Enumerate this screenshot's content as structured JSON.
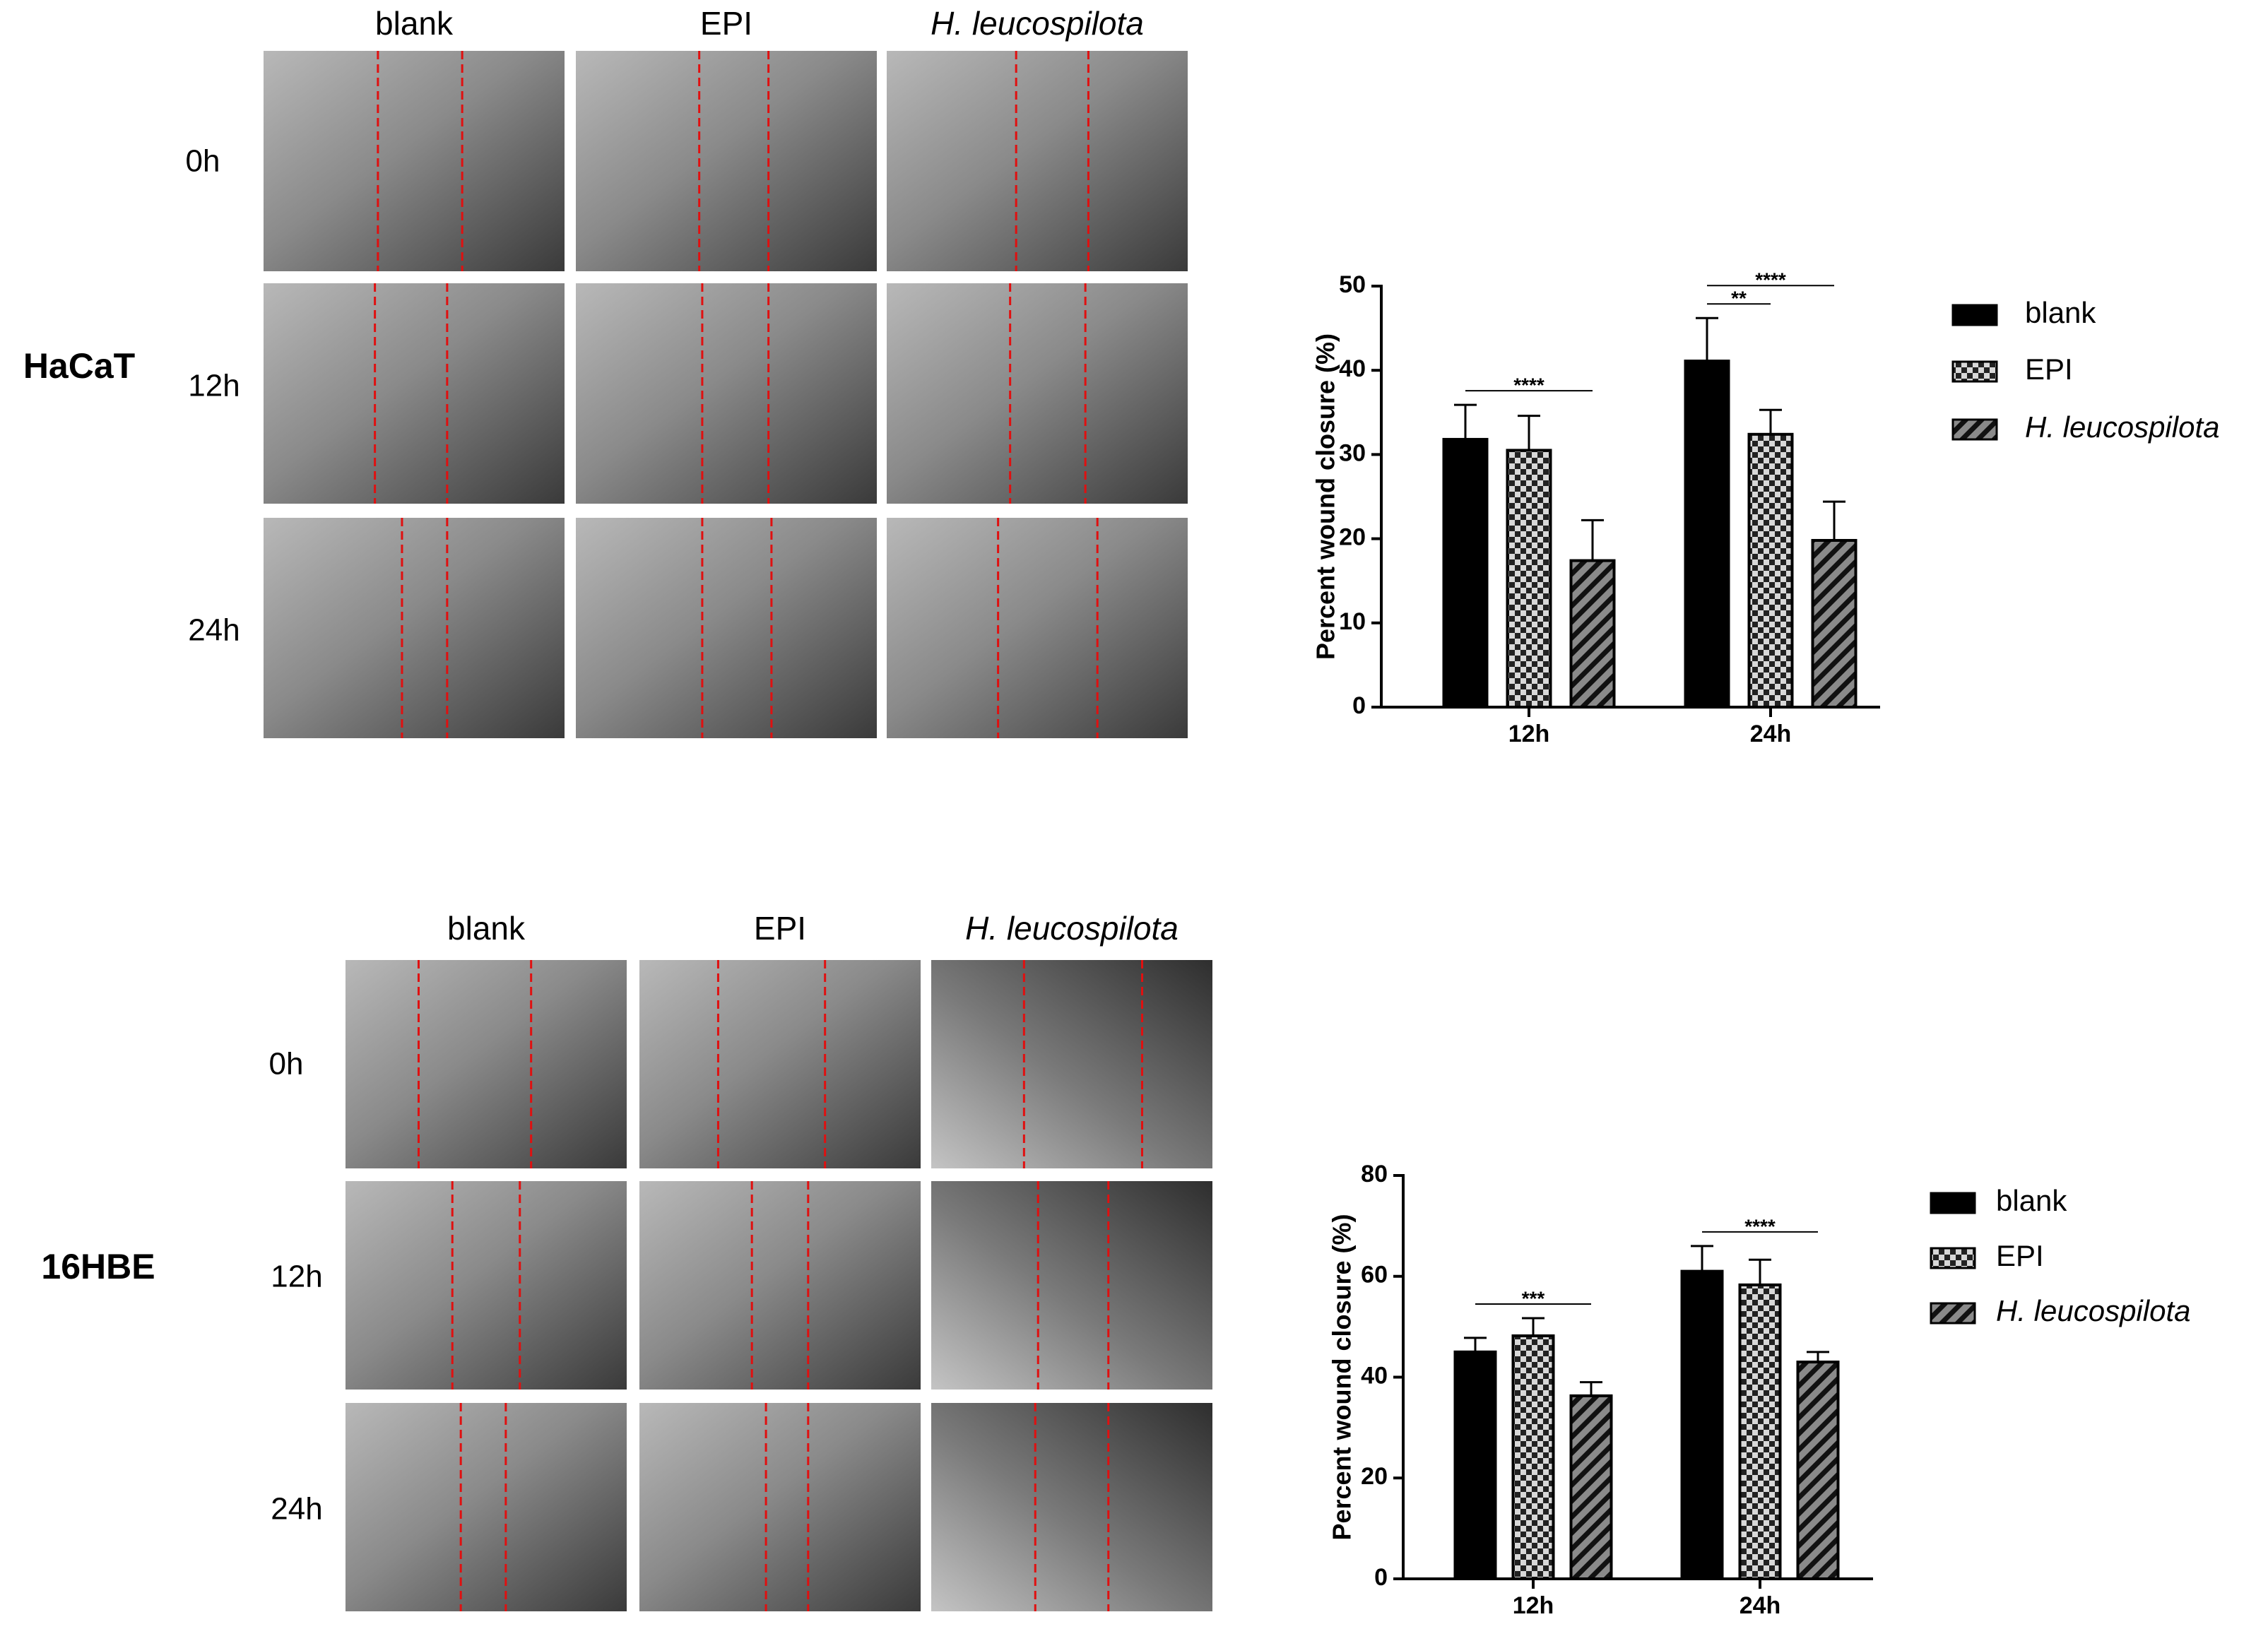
{
  "panels": [
    {
      "cell_line": "HaCaT",
      "columns": [
        "blank",
        "EPI",
        "H. leucospilota"
      ],
      "rows": [
        "0h",
        "12h",
        "24h"
      ]
    },
    {
      "cell_line": "16HBE",
      "columns": [
        "blank",
        "EPI",
        "H. leucospilota"
      ],
      "rows": [
        "0h",
        "12h",
        "24h"
      ]
    }
  ],
  "chart_data": [
    {
      "type": "bar",
      "y_label": "Percent wound closure (%)",
      "categories": [
        "12h",
        "24h"
      ],
      "series": [
        {
          "name": "blank",
          "color": "#000000",
          "pattern": "solid",
          "values": [
            31.8,
            41.1
          ],
          "errors": [
            4.1,
            5.1
          ]
        },
        {
          "name": "EPI",
          "color": "#8c8c8c",
          "pattern": "checker",
          "values": [
            30.5,
            32.4
          ],
          "errors": [
            4.1,
            2.9
          ]
        },
        {
          "name": "H. leucospilota",
          "color": "#6e6e6e",
          "pattern": "hatch",
          "values": [
            17.4,
            19.8
          ],
          "errors": [
            4.8,
            4.6
          ]
        }
      ],
      "ylim": [
        0,
        50
      ],
      "yticks": [
        0,
        10,
        20,
        30,
        40,
        50
      ],
      "legend": "right",
      "annotations": [
        {
          "text": "****",
          "category": 0,
          "from": 0,
          "to": 2
        },
        {
          "text": "**",
          "category": 1,
          "from": 0,
          "to": 1
        },
        {
          "text": "****",
          "category": 1,
          "from": 0,
          "to": 2
        }
      ]
    },
    {
      "type": "bar",
      "y_label": "Percent wound closure (%)",
      "categories": [
        "12h",
        "24h"
      ],
      "series": [
        {
          "name": "blank",
          "color": "#000000",
          "pattern": "solid",
          "values": [
            45,
            61
          ],
          "errors": [
            2.8,
            5
          ]
        },
        {
          "name": "EPI",
          "color": "#8c8c8c",
          "pattern": "checker",
          "values": [
            48.2,
            58.3
          ],
          "errors": [
            3.5,
            5
          ]
        },
        {
          "name": "H. leucospilota",
          "color": "#6e6e6e",
          "pattern": "hatch",
          "values": [
            36.3,
            43
          ],
          "errors": [
            2.7,
            2
          ]
        }
      ],
      "ylim": [
        0,
        80
      ],
      "yticks": [
        0,
        20,
        40,
        60,
        80
      ],
      "legend": "right",
      "annotations": [
        {
          "text": "***",
          "category": 0,
          "from": 0,
          "to": 2
        },
        {
          "text": "****",
          "category": 1,
          "from": 0,
          "to": 2
        }
      ]
    }
  ]
}
